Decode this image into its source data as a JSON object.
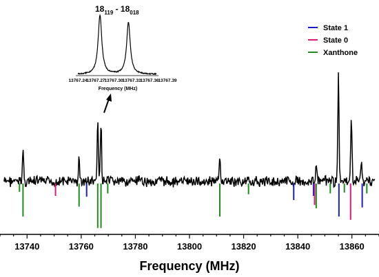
{
  "chart_data": {
    "type": "line",
    "xlabel": "Frequency (MHz)",
    "ylabel": "",
    "xlim": [
      13730,
      13870
    ],
    "x_ticks": [
      13740,
      13760,
      13780,
      13800,
      13820,
      13840,
      13860
    ],
    "x_tick_labels": [
      "13740",
      "13760",
      "13780",
      "13800",
      "13820",
      "13840",
      "13860"
    ],
    "grid": false,
    "legend_position": "top-right",
    "legend": [
      {
        "label": "State 1",
        "color": "#1a1adb"
      },
      {
        "label": "State 0",
        "color": "#e0187a"
      },
      {
        "label": "Xanthone",
        "color": "#1e8c1e"
      }
    ],
    "experimental_peaks": [
      {
        "x": 13738.5,
        "h": 0.47
      },
      {
        "x": 13759.2,
        "h": 0.32
      },
      {
        "x": 13766.1,
        "h": 0.85
      },
      {
        "x": 13767.3,
        "h": 0.88
      },
      {
        "x": 13811.2,
        "h": 0.36
      },
      {
        "x": 13846.8,
        "h": 0.3
      },
      {
        "x": 13855.0,
        "h": 1.55
      },
      {
        "x": 13859.8,
        "h": 0.96
      },
      {
        "x": 13863.5,
        "h": 0.3
      }
    ],
    "series": [
      {
        "name": "State 1",
        "color": "#1a1adb",
        "x": [
          13762.0,
          13838.5,
          13845.8,
          13855.2,
          13863.8
        ],
        "intensity": [
          0.16,
          0.2,
          0.15,
          0.4,
          0.29
        ]
      },
      {
        "name": "State 0",
        "color": "#e0187a",
        "x": [
          13750.5,
          13846.2,
          13859.5
        ],
        "intensity": [
          0.15,
          0.26,
          0.44
        ]
      },
      {
        "name": "Xanthone",
        "color": "#1e8c1e",
        "x": [
          13737.2,
          13738.5,
          13759.2,
          13766.1,
          13767.3,
          13769.8,
          13811.2,
          13821.8,
          13846.8,
          13852.0,
          13857.2,
          13865.5
        ],
        "intensity": [
          0.1,
          0.4,
          0.28,
          0.54,
          0.54,
          0.12,
          0.4,
          0.13,
          0.3,
          0.12,
          0.11,
          0.12
        ]
      }
    ],
    "inset": {
      "title_main": "18",
      "title_sub1": "119",
      "title_sep": " - 18",
      "title_sub2": "018",
      "xlabel": "Frequency (MHz)",
      "xlim": [
        13767.23,
        13767.39
      ],
      "x_tick_labels": [
        "13767.24",
        "13767.27",
        "13767.30",
        "13767.33",
        "13767.36",
        "13767.39"
      ],
      "peaks": [
        {
          "x": 13767.275,
          "h": 0.86
        },
        {
          "x": 13767.333,
          "h": 0.75
        }
      ]
    }
  }
}
